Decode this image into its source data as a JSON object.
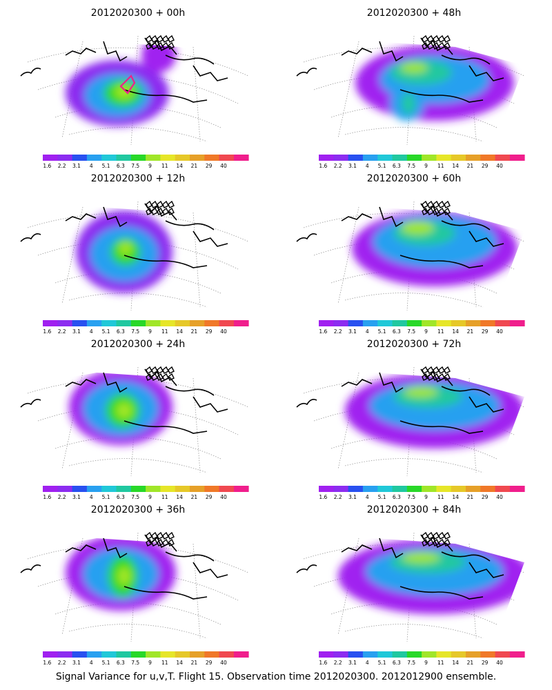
{
  "panels": [
    {
      "title": "2012020300 + 00h"
    },
    {
      "title": "2012020300 + 48h"
    },
    {
      "title": "2012020300 + 12h"
    },
    {
      "title": "2012020300 + 60h"
    },
    {
      "title": "2012020300 + 24h"
    },
    {
      "title": "2012020300 + 72h"
    },
    {
      "title": "2012020300 + 36h"
    },
    {
      "title": "2012020300 + 84h"
    }
  ],
  "colorbar": {
    "colors": [
      "#a020f0",
      "#8c2cf0",
      "#2850f0",
      "#28a0f0",
      "#20c8d8",
      "#20c8a0",
      "#28d828",
      "#a0e628",
      "#e6e628",
      "#e6c828",
      "#e6a028",
      "#f07828",
      "#f04850",
      "#f01e8c"
    ],
    "labels": [
      "1.6",
      "2.2",
      "3.1",
      "4",
      "5.1",
      "6.3",
      "7.5",
      "9",
      "11",
      "14",
      "21",
      "29",
      "40"
    ]
  },
  "caption": "Signal Variance for u,v,T. Flight 15. Observation time 2012020300. 2012012900 ensemble."
}
